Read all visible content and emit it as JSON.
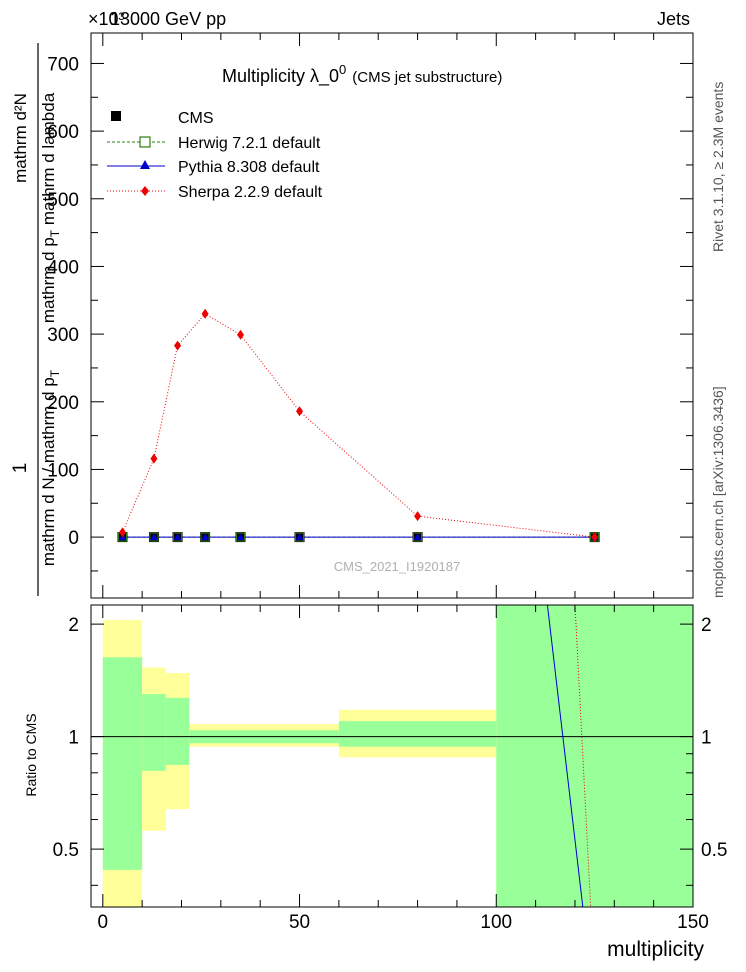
{
  "header": {
    "left": "13000 GeV pp",
    "right": "Jets",
    "exponent": "×10³"
  },
  "title": {
    "main": "Multiplicity  λ_0",
    "sup": "0",
    "sub": "(CMS jet substructure)"
  },
  "watermark": "CMS_2021_I1920187",
  "side_labels": {
    "rivet": "Rivet 3.1.10, ≥ 2.3M events",
    "mcplots": "mcplots.cern.ch [arXiv:1306.3436]"
  },
  "ylabel_main": {
    "numerator": "1",
    "denominator": "mathrm d N / mathrm d p",
    "denominator_sub": "T",
    "numerator2": "mathrm d²N",
    "denominator2": "mathrm d p",
    "denominator2_sub": "T",
    "denominator2_tail": " mathrm d lambda"
  },
  "ylabel_ratio": "Ratio to CMS",
  "xlabel": "multiplicity",
  "colors": {
    "cms": "#000000",
    "herwig": "#2e7d12",
    "pythia": "#0000cc",
    "sherpa": "#ee0000",
    "band_yellow": "#ffff99",
    "band_green": "#99ff99"
  },
  "chart_data": [
    {
      "type": "line",
      "xlim": [
        -3,
        150
      ],
      "ylim": [
        -90,
        745
      ],
      "y_scale_label": "×10³",
      "yticks": [
        0,
        100,
        200,
        300,
        400,
        500,
        600,
        700
      ],
      "xticks": [
        0,
        50,
        100,
        150
      ],
      "legend_position": "top-left",
      "series": [
        {
          "name": "CMS",
          "marker": "square",
          "x": [
            5,
            13,
            19,
            26,
            35,
            50,
            80,
            125
          ],
          "y": [
            0,
            0,
            0,
            0,
            0,
            0,
            0,
            0
          ]
        },
        {
          "name": "Herwig 7.2.1 default",
          "marker": "open-square",
          "x": [
            5,
            13,
            19,
            26,
            35,
            50,
            80,
            125
          ],
          "y": [
            0,
            0,
            0,
            0,
            0,
            0,
            0,
            0
          ]
        },
        {
          "name": "Pythia 8.308 default",
          "marker": "triangle",
          "x": [
            5,
            13,
            19,
            26,
            35,
            50,
            80,
            125
          ],
          "y": [
            0,
            0,
            0,
            0,
            0,
            0,
            0,
            0
          ]
        },
        {
          "name": "Sherpa 2.2.9 default",
          "marker": "diamond",
          "x": [
            5,
            13,
            19,
            26,
            35,
            50,
            80,
            125
          ],
          "y": [
            7,
            116,
            283,
            330,
            299,
            186,
            31,
            0
          ]
        }
      ]
    },
    {
      "type": "area",
      "ylabel": "Ratio to CMS",
      "xlabel": "multiplicity",
      "xlim": [
        -3,
        150
      ],
      "ylim": [
        0.35,
        2.25
      ],
      "yticks": [
        0.5,
        1,
        2
      ],
      "xticks": [
        0,
        50,
        100,
        150
      ],
      "bins": [
        {
          "x0": 0,
          "x1": 10,
          "y_lo": 0.35,
          "y_hi": 2.05,
          "g_lo": 0.44,
          "g_hi": 1.63
        },
        {
          "x0": 10,
          "x1": 16,
          "y_lo": 0.56,
          "y_hi": 1.53,
          "g_lo": 0.81,
          "g_hi": 1.3
        },
        {
          "x0": 16,
          "x1": 22,
          "y_lo": 0.64,
          "y_hi": 1.48,
          "g_lo": 0.84,
          "g_hi": 1.27
        },
        {
          "x0": 22,
          "x1": 60,
          "y_lo": 0.94,
          "y_hi": 1.08,
          "g_lo": 0.96,
          "g_hi": 1.04
        },
        {
          "x0": 60,
          "x1": 100,
          "y_lo": 0.88,
          "y_hi": 1.18,
          "g_lo": 0.94,
          "g_hi": 1.1
        },
        {
          "x0": 100,
          "x1": 150,
          "y_lo": 0.35,
          "y_hi": 2.25,
          "g_lo": 0.35,
          "g_hi": 2.25
        }
      ],
      "series": [
        {
          "name": "Pythia 8.308 default",
          "x": [
            113,
            122
          ],
          "y": [
            2.25,
            0.35
          ]
        },
        {
          "name": "Sherpa 2.2.9 default",
          "x": [
            120,
            124
          ],
          "y": [
            2.25,
            0.35
          ]
        }
      ]
    }
  ]
}
